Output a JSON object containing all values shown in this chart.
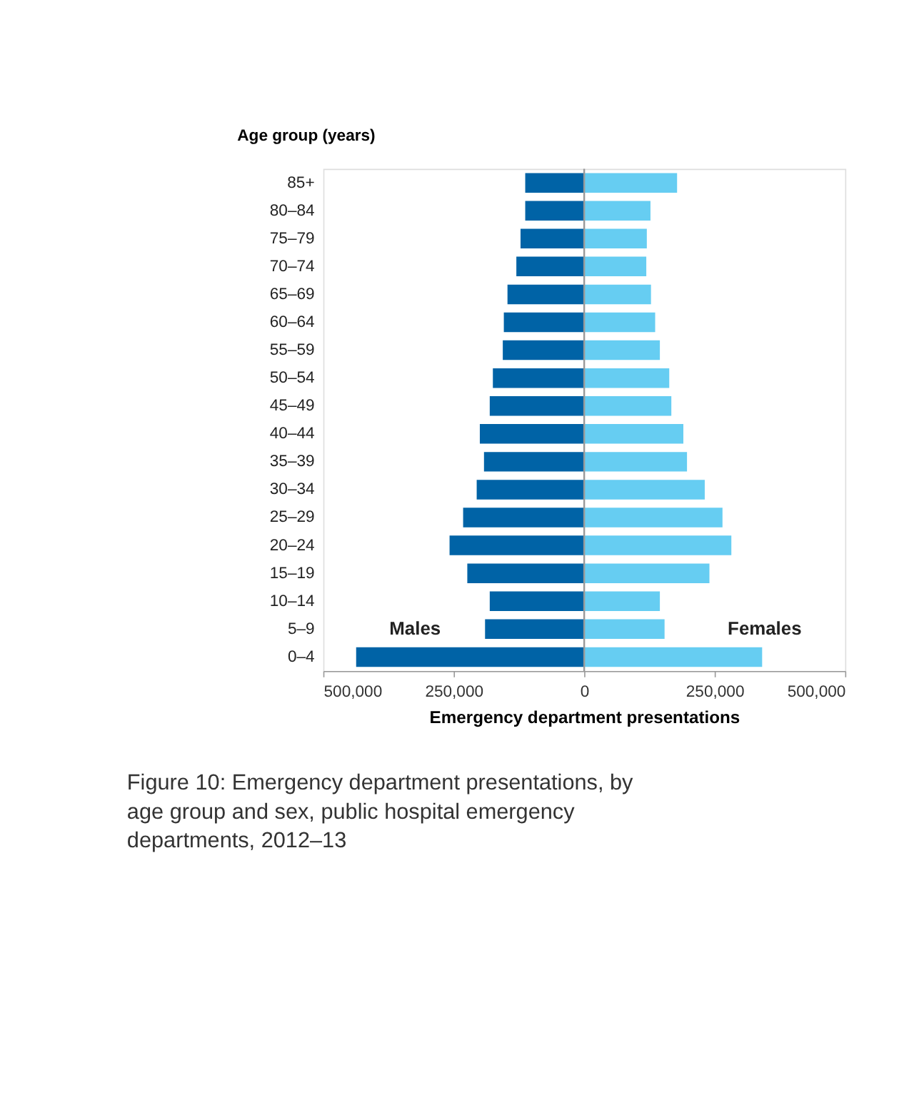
{
  "chart_data": {
    "type": "bar",
    "orientation": "horizontal",
    "stacked": true,
    "ylabel": "Age group (years)",
    "xlabel": "Emergency department presentations",
    "categories": [
      "85+",
      "80–84",
      "75–79",
      "70–74",
      "65–69",
      "60–64",
      "55–59",
      "50–54",
      "45–49",
      "40–44",
      "35–39",
      "30–34",
      "25–29",
      "20–24",
      "15–19",
      "10–14",
      "5–9",
      "0–4"
    ],
    "series": [
      {
        "name": "Males",
        "color": "#0063a6",
        "values": [
          -113000,
          -113000,
          -122000,
          -130000,
          -147000,
          -154000,
          -156000,
          -175000,
          -181000,
          -200000,
          -192000,
          -206000,
          -232000,
          -258000,
          -224000,
          -181000,
          -190000,
          -437000
        ]
      },
      {
        "name": "Females",
        "color": "#66cdf2",
        "values": [
          178000,
          127000,
          120000,
          119000,
          128000,
          136000,
          145000,
          163000,
          167000,
          190000,
          197000,
          231000,
          265000,
          282000,
          240000,
          145000,
          154000,
          341000
        ]
      }
    ],
    "xlim": [
      -500000,
      500000
    ],
    "xticks": [
      {
        "value": -500000,
        "label": "500,000"
      },
      {
        "value": -250000,
        "label": "250,000"
      },
      0,
      {
        "value": 250000,
        "label": "250,000"
      },
      {
        "value": 500000,
        "label": "500,000"
      }
    ],
    "ref_lines": [
      {
        "axis": "x",
        "value": 0,
        "color": "#999999"
      }
    ],
    "grid": false,
    "legend": false,
    "annotations": [
      "Figure 10: Emergency department presentations, by age group and sex, public hospital emergency departments, 2012–13"
    ]
  }
}
